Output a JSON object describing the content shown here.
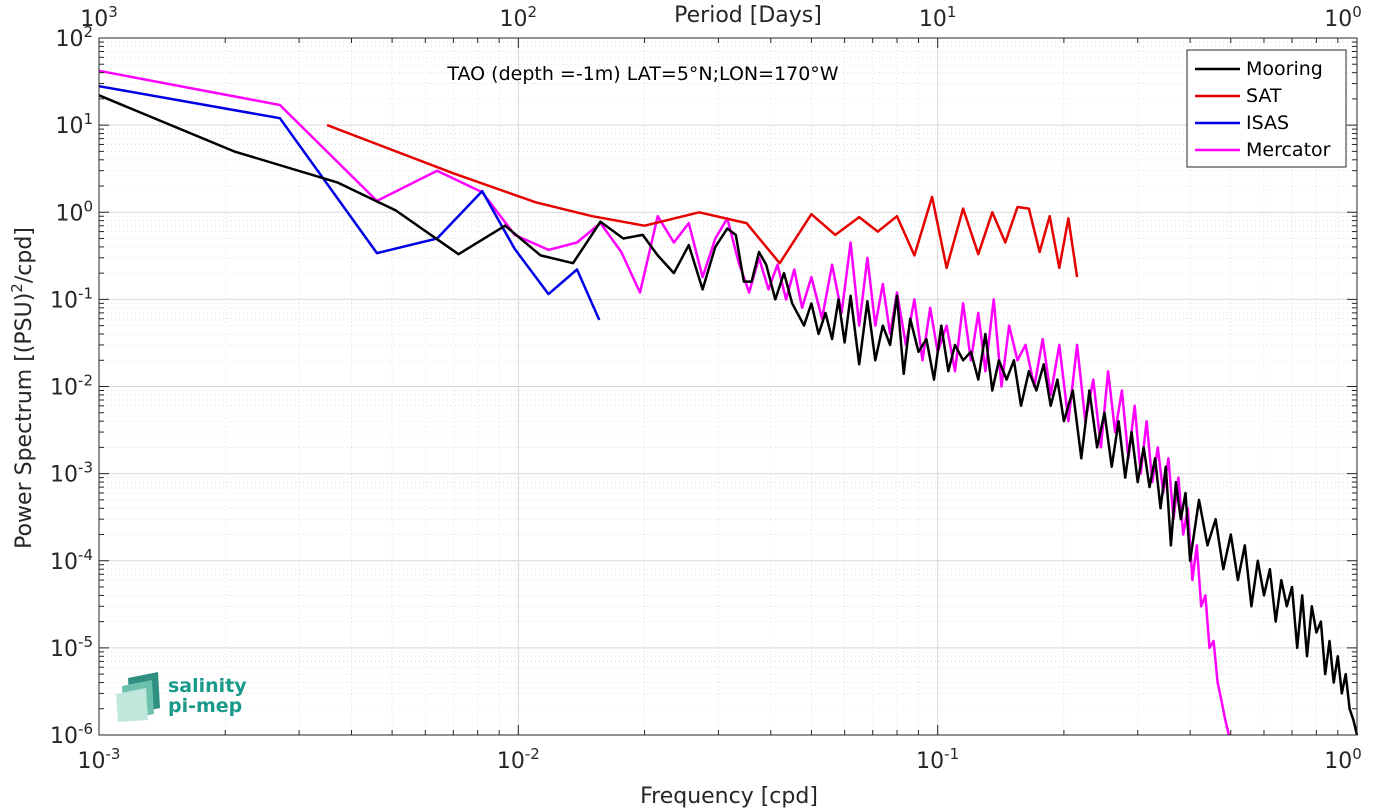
{
  "chart_data": {
    "type": "line",
    "title": "",
    "annotation": "TAO (depth =-1m) LAT=5°N;LON=170°W",
    "xlabel": "Frequency [cpd]",
    "ylabel_main": "Power Spectrum [(PSU)",
    "ylabel_exp": "2",
    "ylabel_tail": "/cpd]",
    "x2label": "Period [Days]",
    "xscale": "log",
    "yscale": "log",
    "xlim": [
      0.001,
      1
    ],
    "ylim": [
      1e-06,
      100
    ],
    "grid": true,
    "legend_position": "top-right",
    "x_ticks": [
      {
        "base": "10",
        "exp": "-3",
        "value": 0.001
      },
      {
        "base": "10",
        "exp": "-2",
        "value": 0.01
      },
      {
        "base": "10",
        "exp": "-1",
        "value": 0.1
      },
      {
        "base": "10",
        "exp": "0",
        "value": 1
      }
    ],
    "x2_ticks": [
      {
        "base": "10",
        "exp": "3",
        "value": 0.001
      },
      {
        "base": "10",
        "exp": "2",
        "value": 0.01
      },
      {
        "base": "10",
        "exp": "1",
        "value": 0.1
      },
      {
        "base": "10",
        "exp": "0",
        "value": 1
      }
    ],
    "y_ticks": [
      {
        "base": "10",
        "exp": "2",
        "value": 100
      },
      {
        "base": "10",
        "exp": "1",
        "value": 10
      },
      {
        "base": "10",
        "exp": "0",
        "value": 1
      },
      {
        "base": "10",
        "exp": "-1",
        "value": 0.1
      },
      {
        "base": "10",
        "exp": "-2",
        "value": 0.01
      },
      {
        "base": "10",
        "exp": "-3",
        "value": 0.001
      },
      {
        "base": "10",
        "exp": "-4",
        "value": 0.0001
      },
      {
        "base": "10",
        "exp": "-5",
        "value": 1e-05
      },
      {
        "base": "10",
        "exp": "-6",
        "value": 1e-06
      }
    ],
    "series": [
      {
        "name": "Mooring",
        "color": "#000000",
        "x": [
          0.001,
          0.0021,
          0.0037,
          0.0051,
          0.0072,
          0.0093,
          0.0113,
          0.0135,
          0.0157,
          0.0178,
          0.0198,
          0.0215,
          0.0235,
          0.0255,
          0.0275,
          0.0295,
          0.0315,
          0.033,
          0.0345,
          0.036,
          0.0375,
          0.039,
          0.041,
          0.043,
          0.045,
          0.048,
          0.05,
          0.052,
          0.054,
          0.056,
          0.058,
          0.06,
          0.062,
          0.065,
          0.068,
          0.071,
          0.074,
          0.077,
          0.08,
          0.083,
          0.086,
          0.09,
          0.094,
          0.098,
          0.102,
          0.106,
          0.11,
          0.115,
          0.12,
          0.125,
          0.13,
          0.135,
          0.14,
          0.146,
          0.152,
          0.158,
          0.165,
          0.172,
          0.179,
          0.186,
          0.193,
          0.2,
          0.21,
          0.22,
          0.23,
          0.24,
          0.25,
          0.26,
          0.27,
          0.28,
          0.29,
          0.3,
          0.31,
          0.32,
          0.33,
          0.34,
          0.35,
          0.36,
          0.37,
          0.38,
          0.39,
          0.4,
          0.42,
          0.44,
          0.46,
          0.48,
          0.5,
          0.52,
          0.54,
          0.56,
          0.58,
          0.6,
          0.62,
          0.64,
          0.66,
          0.68,
          0.7,
          0.72,
          0.74,
          0.76,
          0.78,
          0.8,
          0.82,
          0.84,
          0.86,
          0.88,
          0.9,
          0.92,
          0.94,
          0.96,
          0.98,
          1.0
        ],
        "values": [
          22,
          5,
          2.2,
          1.05,
          0.33,
          0.7,
          0.32,
          0.26,
          0.78,
          0.5,
          0.55,
          0.32,
          0.2,
          0.42,
          0.13,
          0.4,
          0.65,
          0.55,
          0.16,
          0.16,
          0.35,
          0.25,
          0.1,
          0.2,
          0.09,
          0.05,
          0.09,
          0.04,
          0.07,
          0.035,
          0.1,
          0.032,
          0.11,
          0.018,
          0.095,
          0.02,
          0.05,
          0.03,
          0.11,
          0.014,
          0.06,
          0.025,
          0.035,
          0.012,
          0.05,
          0.015,
          0.03,
          0.02,
          0.025,
          0.012,
          0.04,
          0.009,
          0.02,
          0.012,
          0.02,
          0.006,
          0.015,
          0.009,
          0.018,
          0.006,
          0.012,
          0.004,
          0.009,
          0.0015,
          0.009,
          0.002,
          0.005,
          0.0012,
          0.004,
          0.0009,
          0.003,
          0.0008,
          0.002,
          0.0007,
          0.0015,
          0.0004,
          0.0012,
          0.00015,
          0.0008,
          0.0003,
          0.0006,
          0.0001,
          0.0005,
          0.00015,
          0.0003,
          8e-05,
          0.0002,
          6e-05,
          0.00015,
          3e-05,
          0.0001,
          4e-05,
          8e-05,
          2e-05,
          6e-05,
          3e-05,
          5e-05,
          1e-05,
          4e-05,
          8e-06,
          3e-05,
          1.5e-05,
          2e-05,
          5e-06,
          1.2e-05,
          4e-06,
          8e-06,
          3e-06,
          5e-06,
          2e-06,
          1.5e-06,
          1e-06
        ]
      },
      {
        "name": "SAT",
        "color": "#e60000",
        "x": [
          0.0035,
          0.007,
          0.011,
          0.015,
          0.02,
          0.027,
          0.035,
          0.042,
          0.05,
          0.057,
          0.065,
          0.072,
          0.08,
          0.088,
          0.097,
          0.105,
          0.115,
          0.125,
          0.135,
          0.145,
          0.155,
          0.165,
          0.175,
          0.185,
          0.195,
          0.205,
          0.215
        ],
        "values": [
          10,
          2.8,
          1.3,
          0.9,
          0.7,
          1.0,
          0.75,
          0.26,
          0.95,
          0.55,
          0.88,
          0.6,
          0.9,
          0.32,
          1.5,
          0.23,
          1.1,
          0.33,
          1.0,
          0.45,
          1.15,
          1.1,
          0.35,
          0.9,
          0.23,
          0.85,
          0.18
        ]
      },
      {
        "name": "ISAS",
        "color": "#0000e6",
        "x": [
          0.001,
          0.0027,
          0.0046,
          0.0064,
          0.0082,
          0.0098,
          0.0118,
          0.0138,
          0.0156
        ],
        "values": [
          28,
          12,
          0.34,
          0.5,
          1.75,
          0.38,
          0.115,
          0.22,
          0.058
        ]
      },
      {
        "name": "Mercator",
        "color": "#ff00ff",
        "x": [
          0.001,
          0.0027,
          0.0046,
          0.0064,
          0.0082,
          0.0098,
          0.0118,
          0.0138,
          0.0157,
          0.0176,
          0.0195,
          0.0215,
          0.0235,
          0.0255,
          0.0275,
          0.0295,
          0.0315,
          0.0335,
          0.0355,
          0.0375,
          0.0395,
          0.0415,
          0.0435,
          0.0455,
          0.0475,
          0.05,
          0.053,
          0.056,
          0.059,
          0.062,
          0.065,
          0.068,
          0.071,
          0.074,
          0.077,
          0.08,
          0.084,
          0.088,
          0.092,
          0.096,
          0.1,
          0.105,
          0.11,
          0.115,
          0.12,
          0.125,
          0.13,
          0.136,
          0.142,
          0.148,
          0.155,
          0.162,
          0.17,
          0.178,
          0.186,
          0.195,
          0.205,
          0.215,
          0.225,
          0.235,
          0.245,
          0.255,
          0.265,
          0.275,
          0.285,
          0.295,
          0.305,
          0.315,
          0.325,
          0.335,
          0.345,
          0.355,
          0.365,
          0.375,
          0.385,
          0.395,
          0.405,
          0.415,
          0.425,
          0.435,
          0.445,
          0.455,
          0.465,
          0.475,
          0.485,
          0.495
        ],
        "values": [
          42,
          17,
          1.35,
          3.0,
          1.7,
          0.55,
          0.37,
          0.45,
          0.75,
          0.35,
          0.12,
          0.9,
          0.45,
          0.75,
          0.18,
          0.5,
          0.85,
          0.27,
          0.12,
          0.3,
          0.13,
          0.25,
          0.1,
          0.22,
          0.08,
          0.18,
          0.06,
          0.25,
          0.07,
          0.45,
          0.05,
          0.3,
          0.05,
          0.15,
          0.04,
          0.12,
          0.03,
          0.1,
          0.02,
          0.08,
          0.025,
          0.05,
          0.015,
          0.09,
          0.02,
          0.07,
          0.015,
          0.1,
          0.01,
          0.05,
          0.02,
          0.03,
          0.01,
          0.035,
          0.008,
          0.03,
          0.004,
          0.03,
          0.004,
          0.012,
          0.002,
          0.015,
          0.003,
          0.009,
          0.0015,
          0.006,
          0.001,
          0.004,
          0.0008,
          0.002,
          0.0006,
          0.0015,
          0.0003,
          0.0009,
          0.0002,
          0.0004,
          6e-05,
          0.00015,
          3e-05,
          4e-05,
          1e-05,
          1.2e-05,
          4e-06,
          2.5e-06,
          1.5e-06,
          1e-06
        ]
      }
    ]
  },
  "logo": {
    "line1": "salinity",
    "line2": "pi-mep",
    "color_primary": "#1a9a8a",
    "color_light": "#bfe7dc"
  },
  "colors": {
    "axis": "#262626",
    "grid": "#d9d9d9"
  }
}
